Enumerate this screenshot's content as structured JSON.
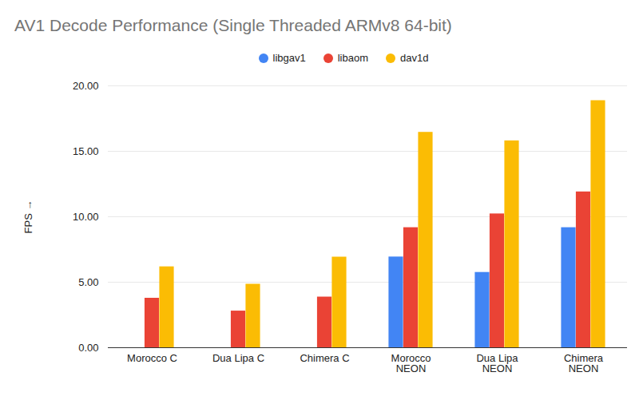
{
  "chart_data": {
    "type": "bar",
    "title": "AV1 Decode Performance (Single Threaded ARMv8 64-bit)",
    "ylabel": "FPS",
    "categories": [
      "Morocco C",
      "Dua Lipa C",
      "Chimera C",
      "Morocco NEON",
      "Dua Lipa NEON",
      "Chimera NEON"
    ],
    "series": [
      {
        "name": "libgav1",
        "color": "#4285f4",
        "values": [
          null,
          null,
          null,
          6.93,
          5.75,
          9.17
        ]
      },
      {
        "name": "libaom",
        "color": "#ea4335",
        "values": [
          3.78,
          2.8,
          3.87,
          9.17,
          10.22,
          11.9
        ]
      },
      {
        "name": "dav1d",
        "color": "#fbbc04",
        "values": [
          6.18,
          4.85,
          6.92,
          16.45,
          15.8,
          18.87
        ]
      }
    ],
    "ylim": [
      0,
      20
    ],
    "yticks": [
      {
        "value": 0,
        "label": "0.00"
      },
      {
        "value": 5,
        "label": "5.00"
      },
      {
        "value": 10,
        "label": "10.00"
      },
      {
        "value": 15,
        "label": "15.00"
      },
      {
        "value": 20,
        "label": "20.00"
      }
    ],
    "grid": true,
    "legend": "top"
  }
}
